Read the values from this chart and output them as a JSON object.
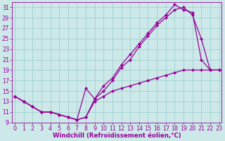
{
  "line1_x": [
    0,
    1,
    2,
    3,
    4,
    5,
    6,
    7,
    8,
    9,
    10,
    11,
    12,
    13,
    14,
    15,
    16,
    17,
    18,
    19,
    20,
    21,
    22,
    23
  ],
  "line1_y": [
    14,
    13,
    12,
    11,
    11,
    10.5,
    10,
    9.5,
    10,
    13.5,
    16,
    17.5,
    20,
    22,
    24,
    26,
    28,
    29.5,
    31.5,
    30.5,
    30,
    21,
    19,
    19
  ],
  "line2_x": [
    0,
    1,
    2,
    3,
    4,
    5,
    6,
    7,
    8,
    9,
    10,
    11,
    12,
    13,
    14,
    15,
    16,
    17,
    18,
    19,
    20,
    21,
    22,
    23
  ],
  "line2_y": [
    14,
    13,
    12,
    11,
    11,
    10.5,
    10,
    9.5,
    15.5,
    13.5,
    15,
    17,
    19.5,
    21,
    23.5,
    25.5,
    27.5,
    29,
    30.5,
    31,
    29.5,
    25,
    19,
    19
  ],
  "line3_x": [
    0,
    1,
    2,
    3,
    4,
    5,
    6,
    7,
    8,
    9,
    10,
    11,
    12,
    13,
    14,
    15,
    16,
    17,
    18,
    19,
    20,
    21,
    22,
    23
  ],
  "line3_y": [
    14,
    13,
    12,
    11,
    11,
    10.5,
    10,
    9.5,
    10,
    13,
    14,
    15,
    15.5,
    16,
    16.5,
    17,
    17.5,
    18,
    18.5,
    19,
    19,
    19,
    19,
    19
  ],
  "xlim_min": -0.3,
  "xlim_max": 23.3,
  "ylim_min": 9,
  "ylim_max": 32,
  "yticks": [
    9,
    11,
    13,
    15,
    17,
    19,
    21,
    23,
    25,
    27,
    29,
    31
  ],
  "xticks": [
    0,
    1,
    2,
    3,
    4,
    5,
    6,
    7,
    8,
    9,
    10,
    11,
    12,
    13,
    14,
    15,
    16,
    17,
    18,
    19,
    20,
    21,
    22,
    23
  ],
  "xlabel": "Windchill (Refroidissement éolien,°C)",
  "line_color": "#990099",
  "bg_color": "#cce8e8",
  "grid_color": "#99cccc",
  "marker": "D",
  "markersize": 2.2,
  "linewidth": 0.9,
  "xlabel_fontsize": 6.2,
  "tick_fontsize": 5.8
}
